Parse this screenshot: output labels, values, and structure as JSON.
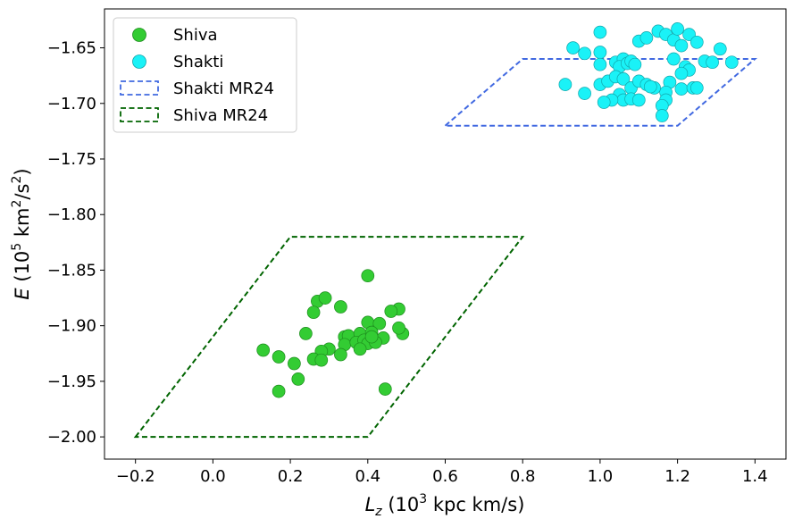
{
  "chart_data": {
    "type": "scatter",
    "xlabel": {
      "sym": "L",
      "sub": "z",
      "pre": " (10",
      "sup": "3",
      "post": " kpc km/s)"
    },
    "ylabel": {
      "sym": "E",
      "pre": " (10",
      "sup1": "5",
      "mid": " km",
      "sup2": "2",
      "mid2": "/s",
      "sup3": "2",
      "post": ")"
    },
    "xlim": [
      -0.28,
      1.48
    ],
    "ylim": [
      -2.02,
      -1.615
    ],
    "xticks": [
      -0.2,
      0.0,
      0.2,
      0.4,
      0.6,
      0.8,
      1.0,
      1.2,
      1.4
    ],
    "xtick_labels": [
      "−0.2",
      "0.0",
      "0.2",
      "0.4",
      "0.6",
      "0.8",
      "1.0",
      "1.2",
      "1.4"
    ],
    "yticks": [
      -2.0,
      -1.95,
      -1.9,
      -1.85,
      -1.8,
      -1.75,
      -1.7,
      -1.65
    ],
    "ytick_labels": [
      "−2.00",
      "−1.95",
      "−1.90",
      "−1.85",
      "−1.80",
      "−1.75",
      "−1.70",
      "−1.65"
    ],
    "legend_position": "top-left",
    "series": [
      {
        "name": "Shiva",
        "kind": "scatter",
        "color": "#33cc33",
        "edge": "#1e8c1e",
        "points": [
          [
            0.4,
            -1.855
          ],
          [
            0.27,
            -1.878
          ],
          [
            0.29,
            -1.875
          ],
          [
            0.26,
            -1.888
          ],
          [
            0.33,
            -1.883
          ],
          [
            0.48,
            -1.885
          ],
          [
            0.46,
            -1.887
          ],
          [
            0.4,
            -1.897
          ],
          [
            0.43,
            -1.898
          ],
          [
            0.24,
            -1.907
          ],
          [
            0.34,
            -1.91
          ],
          [
            0.35,
            -1.909
          ],
          [
            0.38,
            -1.907
          ],
          [
            0.41,
            -1.906
          ],
          [
            0.44,
            -1.911
          ],
          [
            0.49,
            -1.907
          ],
          [
            0.48,
            -1.902
          ],
          [
            0.34,
            -1.917
          ],
          [
            0.37,
            -1.915
          ],
          [
            0.39,
            -1.913
          ],
          [
            0.4,
            -1.916
          ],
          [
            0.42,
            -1.915
          ],
          [
            0.38,
            -1.921
          ],
          [
            0.3,
            -1.921
          ],
          [
            0.28,
            -1.923
          ],
          [
            0.33,
            -1.926
          ],
          [
            0.13,
            -1.922
          ],
          [
            0.17,
            -1.928
          ],
          [
            0.26,
            -1.93
          ],
          [
            0.28,
            -1.931
          ],
          [
            0.21,
            -1.934
          ],
          [
            0.22,
            -1.948
          ],
          [
            0.17,
            -1.959
          ],
          [
            0.445,
            -1.957
          ],
          [
            0.41,
            -1.91
          ]
        ]
      },
      {
        "name": "Shakti",
        "kind": "scatter",
        "color": "#1af2f7",
        "edge": "#13a6ab",
        "points": [
          [
            0.93,
            -1.65
          ],
          [
            0.96,
            -1.655
          ],
          [
            1.0,
            -1.636
          ],
          [
            1.0,
            -1.654
          ],
          [
            1.0,
            -1.665
          ],
          [
            1.04,
            -1.663
          ],
          [
            1.06,
            -1.66
          ],
          [
            1.05,
            -1.667
          ],
          [
            1.07,
            -1.664
          ],
          [
            1.08,
            -1.662
          ],
          [
            1.09,
            -1.665
          ],
          [
            1.1,
            -1.644
          ],
          [
            1.12,
            -1.641
          ],
          [
            1.15,
            -1.635
          ],
          [
            1.17,
            -1.638
          ],
          [
            1.19,
            -1.643
          ],
          [
            1.2,
            -1.633
          ],
          [
            1.21,
            -1.648
          ],
          [
            1.23,
            -1.638
          ],
          [
            1.25,
            -1.645
          ],
          [
            1.31,
            -1.651
          ],
          [
            1.19,
            -1.66
          ],
          [
            1.22,
            -1.667
          ],
          [
            1.23,
            -1.67
          ],
          [
            1.27,
            -1.662
          ],
          [
            1.29,
            -1.663
          ],
          [
            1.34,
            -1.663
          ],
          [
            1.21,
            -1.673
          ],
          [
            1.18,
            -1.681
          ],
          [
            1.17,
            -1.69
          ],
          [
            1.17,
            -1.697
          ],
          [
            1.16,
            -1.702
          ],
          [
            1.16,
            -1.711
          ],
          [
            1.21,
            -1.687
          ],
          [
            1.24,
            -1.686
          ],
          [
            1.25,
            -1.686
          ],
          [
            0.91,
            -1.683
          ],
          [
            0.96,
            -1.691
          ],
          [
            1.0,
            -1.683
          ],
          [
            1.02,
            -1.68
          ],
          [
            1.04,
            -1.676
          ],
          [
            1.06,
            -1.678
          ],
          [
            1.08,
            -1.686
          ],
          [
            1.1,
            -1.68
          ],
          [
            1.12,
            -1.683
          ],
          [
            1.14,
            -1.686
          ],
          [
            1.05,
            -1.692
          ],
          [
            1.06,
            -1.697
          ],
          [
            1.03,
            -1.697
          ],
          [
            1.01,
            -1.699
          ],
          [
            1.08,
            -1.696
          ],
          [
            1.1,
            -1.697
          ],
          [
            1.13,
            -1.685
          ]
        ]
      },
      {
        "name": "Shakti MR24",
        "kind": "polygon",
        "color": "#4169e1",
        "vertices": [
          [
            0.6,
            -1.72
          ],
          [
            0.8,
            -1.66
          ],
          [
            1.4,
            -1.66
          ],
          [
            1.2,
            -1.72
          ]
        ]
      },
      {
        "name": "Shiva MR24",
        "kind": "polygon",
        "color": "#006400",
        "vertices": [
          [
            -0.2,
            -2.0
          ],
          [
            0.2,
            -1.82
          ],
          [
            0.8,
            -1.82
          ],
          [
            0.4,
            -2.0
          ]
        ]
      }
    ]
  }
}
